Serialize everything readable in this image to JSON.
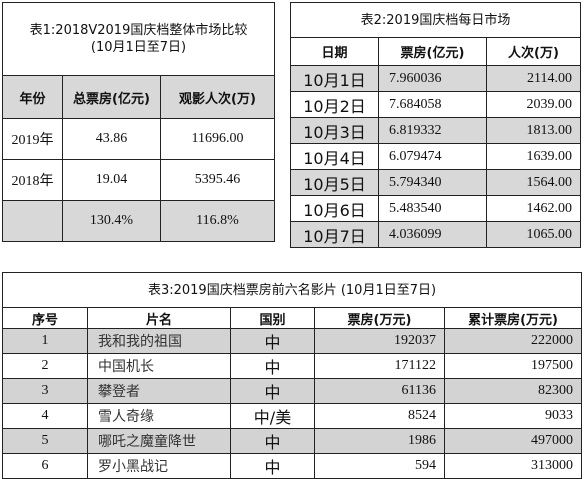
{
  "table1": {
    "title_line1": "表1:2018V2019国庆档整体市场比较",
    "title_line2": "(10月1日至7日)",
    "headers": [
      "年份",
      "总票房(亿元)",
      "观影人次(万)"
    ],
    "rows": [
      {
        "year": "2019年",
        "box": "43.86",
        "viewers": "11696.00"
      },
      {
        "year": "2018年",
        "box": "19.04",
        "viewers": "5395.46"
      },
      {
        "year": "",
        "box": "130.4%",
        "viewers": "116.8%"
      }
    ]
  },
  "table2": {
    "title": "表2:2019国庆档每日市场",
    "headers": [
      "日期",
      "票房(亿元)",
      "人次(万)"
    ],
    "rows": [
      {
        "date": "10月1日",
        "box": "7.960036",
        "viewers": "2114.00"
      },
      {
        "date": "10月2日",
        "box": "7.684058",
        "viewers": "2039.00"
      },
      {
        "date": "10月3日",
        "box": "6.819332",
        "viewers": "1813.00"
      },
      {
        "date": "10月4日",
        "box": "6.079474",
        "viewers": "1639.00"
      },
      {
        "date": "10月5日",
        "box": "5.794340",
        "viewers": "1564.00"
      },
      {
        "date": "10月6日",
        "box": "5.483540",
        "viewers": "1462.00"
      },
      {
        "date": "10月7日",
        "box": "4.036099",
        "viewers": "1065.00"
      }
    ]
  },
  "table3": {
    "title": "表3:2019国庆档票房前六名影片  (10月1日至7日)",
    "headers": [
      "序号",
      "片名",
      "国别",
      "票房(万元)",
      "累计票房(万元)"
    ],
    "rows": [
      {
        "no": "1",
        "name": "我和我的祖国",
        "country": "中",
        "box": "192037",
        "total": "222000"
      },
      {
        "no": "2",
        "name": "中国机长",
        "country": "中",
        "box": "171122",
        "total": "197500"
      },
      {
        "no": "3",
        "name": "攀登者",
        "country": "中",
        "box": "61136",
        "total": "82300"
      },
      {
        "no": "4",
        "name": "雪人奇缘",
        "country": "中/美",
        "box": "8524",
        "total": "9033"
      },
      {
        "no": "5",
        "name": "哪吒之魔童降世",
        "country": "中",
        "box": "1986",
        "total": "497000"
      },
      {
        "no": "6",
        "name": "罗小黑战记",
        "country": "中",
        "box": "594",
        "total": "313000"
      }
    ]
  }
}
